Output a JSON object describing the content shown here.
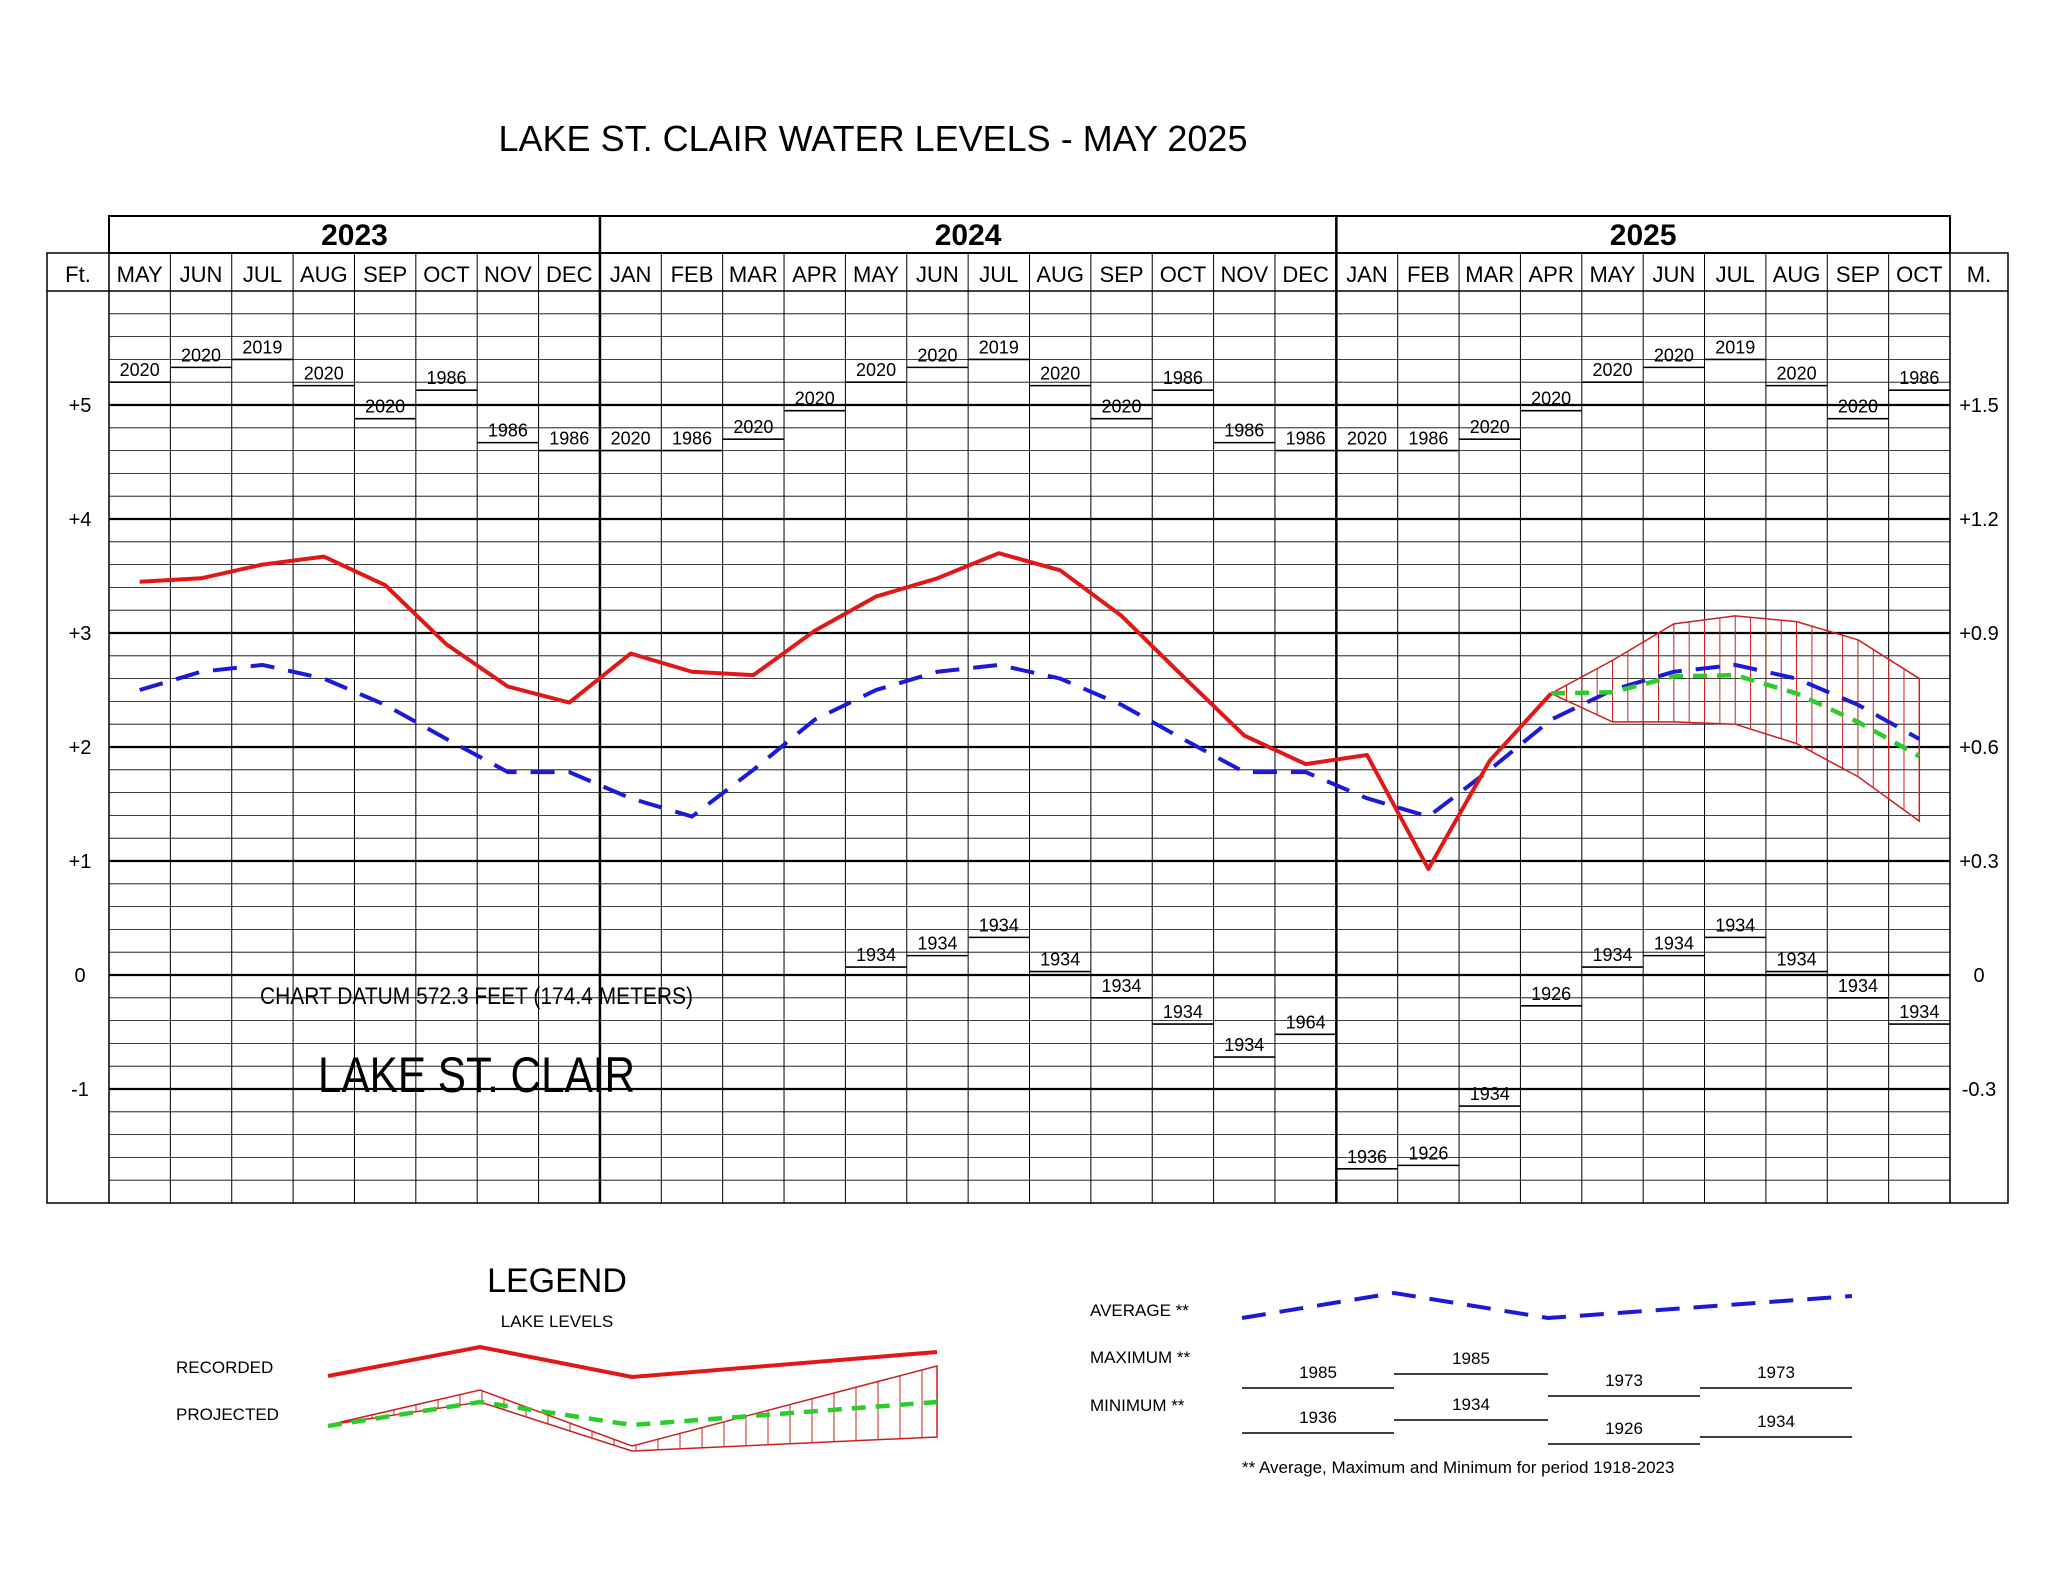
{
  "chart_data": {
    "type": "line",
    "title": "LAKE ST. CLAIR WATER LEVELS - MAY 2025",
    "years": [
      {
        "label": "2023",
        "start": 0,
        "end": 8
      },
      {
        "label": "2024",
        "start": 8,
        "end": 20
      },
      {
        "label": "2025",
        "start": 20,
        "end": 30
      }
    ],
    "categories": [
      "MAY",
      "JUN",
      "JUL",
      "AUG",
      "SEP",
      "OCT",
      "NOV",
      "DEC",
      "JAN",
      "FEB",
      "MAR",
      "APR",
      "MAY",
      "JUN",
      "JUL",
      "AUG",
      "SEP",
      "OCT",
      "NOV",
      "DEC",
      "JAN",
      "FEB",
      "MAR",
      "APR",
      "MAY",
      "JUN",
      "JUL",
      "AUG",
      "SEP",
      "OCT"
    ],
    "left_unit": "Ft.",
    "right_unit": "M.",
    "ylim": [
      -2,
      6
    ],
    "left_ticks": [
      {
        "value": 5,
        "label": "+5"
      },
      {
        "value": 4,
        "label": "+4"
      },
      {
        "value": 3,
        "label": "+3"
      },
      {
        "value": 2,
        "label": "+2"
      },
      {
        "value": 1,
        "label": "+1"
      },
      {
        "value": 0,
        "label": "0"
      },
      {
        "value": -1,
        "label": "-1"
      }
    ],
    "right_ticks": [
      {
        "value": 5,
        "label": "+1.5"
      },
      {
        "value": 4,
        "label": "+1.2"
      },
      {
        "value": 3,
        "label": "+0.9"
      },
      {
        "value": 2,
        "label": "+0.6"
      },
      {
        "value": 1,
        "label": "+0.3"
      },
      {
        "value": 0,
        "label": "0"
      },
      {
        "value": -1,
        "label": "-0.3"
      }
    ],
    "recorded": [
      3.45,
      3.48,
      3.6,
      3.67,
      3.42,
      2.9,
      2.53,
      2.39,
      2.82,
      2.66,
      2.63,
      3.02,
      3.32,
      3.48,
      3.7,
      3.55,
      3.15,
      2.62,
      2.1,
      1.85,
      1.93,
      0.93,
      1.88,
      2.47
    ],
    "average": [
      2.5,
      2.66,
      2.72,
      2.6,
      2.37,
      2.07,
      1.78,
      1.78,
      1.55,
      1.39,
      1.8,
      2.24,
      2.5,
      2.66,
      2.72,
      2.6,
      2.37,
      2.07,
      1.78,
      1.78,
      1.55,
      1.39,
      1.8,
      2.24,
      2.5,
      2.66,
      2.72,
      2.6,
      2.37,
      2.07
    ],
    "projected": {
      "start_index": 23,
      "mid": [
        2.47,
        2.48,
        2.62,
        2.63,
        2.47,
        2.22,
        1.92
      ],
      "upper": [
        2.47,
        2.76,
        3.08,
        3.15,
        3.1,
        2.94,
        2.6
      ],
      "lower": [
        2.47,
        2.22,
        2.22,
        2.2,
        2.03,
        1.74,
        1.35
      ]
    },
    "maximum": [
      5.2,
      5.33,
      5.4,
      5.17,
      4.88,
      5.13,
      4.67,
      4.6,
      4.6,
      4.6,
      4.7,
      4.95,
      5.2,
      5.33,
      5.4,
      5.17,
      4.88,
      5.13,
      4.67,
      4.6,
      4.6,
      4.6,
      4.7,
      4.95,
      5.2,
      5.33,
      5.4,
      5.17,
      4.88,
      5.13
    ],
    "maximum_years": [
      "2020",
      "2020",
      "2019",
      "2020",
      "2020",
      "1986",
      "1986",
      "1986",
      "2020",
      "1986",
      "2020",
      "2020",
      "2020",
      "2020",
      "2019",
      "2020",
      "2020",
      "1986",
      "1986",
      "1986",
      "2020",
      "1986",
      "2020",
      "2020",
      "2020",
      "2020",
      "2019",
      "2020",
      "2020",
      "1986"
    ],
    "minimum": [
      null,
      null,
      null,
      null,
      null,
      null,
      null,
      null,
      null,
      null,
      null,
      null,
      0.07,
      0.17,
      0.33,
      0.03,
      -0.2,
      -0.43,
      -0.72,
      -0.52,
      -1.7,
      -1.67,
      -1.15,
      -0.27,
      0.07,
      0.17,
      0.33,
      0.03,
      -0.2,
      -0.43
    ],
    "minimum_years": [
      "",
      "",
      "",
      "",
      "",
      "",
      "",
      "",
      "",
      "",
      "",
      "",
      "1934",
      "1934",
      "1934",
      "1934",
      "1934",
      "1934",
      "1934",
      "1964",
      "1936",
      "1926",
      "1934",
      "1926",
      "1934",
      "1934",
      "1934",
      "1934",
      "1934",
      "1934"
    ],
    "annotations": {
      "datum": "CHART DATUM 572.3 FEET (174.4 METERS)",
      "lake_name": "LAKE ST. CLAIR"
    },
    "grid": true,
    "colors": {
      "recorded": "#e01818",
      "average": "#1a1ad8",
      "projected": "#2ccc2c",
      "band": "#cc2020"
    }
  },
  "legend": {
    "title": "LEGEND",
    "subtitle": "LAKE LEVELS",
    "recorded": "RECORDED",
    "projected": "PROJECTED",
    "average": "AVERAGE **",
    "maximum": "MAXIMUM **",
    "minimum": "MINIMUM **",
    "footnote": "** Average, Maximum and Minimum for period 1918-2023",
    "max_years": [
      "1985",
      "1985",
      "1973",
      "1973"
    ],
    "min_years": [
      "1936",
      "1934",
      "1926",
      "1934"
    ]
  }
}
